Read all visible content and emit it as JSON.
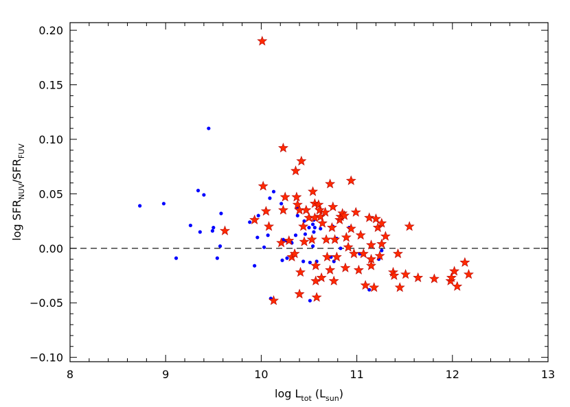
{
  "chart_data": {
    "type": "scatter",
    "xlabel_parts": [
      "log L",
      "tot",
      " (L",
      "sun",
      ")"
    ],
    "ylabel_parts": [
      "log SFR",
      "NUV",
      "/SFR",
      "FUV"
    ],
    "xlim": [
      8,
      13
    ],
    "xticks": [
      8,
      9,
      10,
      11,
      12,
      13
    ],
    "ylim": [
      -0.104,
      0.207
    ],
    "yticks": [
      {
        "value": -0.1,
        "label": "−0.10"
      },
      {
        "value": -0.05,
        "label": "−0.05"
      },
      {
        "value": 0,
        "label": "0.00"
      },
      {
        "value": 0.05,
        "label": "0.05"
      },
      {
        "value": 0.1,
        "label": "0.10"
      },
      {
        "value": 0.15,
        "label": "0.15"
      },
      {
        "value": 0.2,
        "label": "0.20"
      }
    ],
    "hline": 0,
    "series": [
      {
        "color": "#0000ff",
        "marker": "circle",
        "x": [
          8.73,
          8.98,
          9.11,
          9.26,
          9.34,
          9.36,
          9.4,
          9.45,
          9.49,
          9.5,
          9.54,
          9.57,
          9.58,
          9.88,
          9.93,
          9.93,
          9.96,
          9.97,
          10.03,
          10.07,
          10.09,
          10.1,
          10.13,
          10.21,
          10.22,
          10.23,
          10.26,
          10.27,
          10.31,
          10.32,
          10.36,
          10.38,
          10.38,
          10.44,
          10.45,
          10.46,
          10.5,
          10.51,
          10.51,
          10.54,
          10.54,
          10.55,
          10.55,
          10.56,
          10.58,
          10.62,
          10.73,
          10.76,
          10.75,
          10.79,
          10.83,
          10.92,
          11.03,
          11.13,
          11.23,
          11.26
        ],
        "values": [
          0.039,
          0.041,
          -0.009,
          0.021,
          0.053,
          0.015,
          0.049,
          0.11,
          0.016,
          0.019,
          -0.009,
          0.002,
          0.032,
          0.024,
          0.027,
          -0.016,
          0.01,
          0.03,
          0.001,
          0.012,
          0.046,
          -0.046,
          0.052,
          0.041,
          -0.011,
          0.008,
          0.007,
          -0.009,
          0.006,
          0.005,
          0.012,
          0.03,
          0.037,
          -0.012,
          0.025,
          0.013,
          0.019,
          -0.013,
          -0.048,
          0.022,
          0.002,
          0.015,
          0.026,
          0.019,
          -0.012,
          0.018,
          -0.008,
          -0.012,
          0.02,
          0.009,
          0.0,
          0.019,
          -0.005,
          -0.038,
          -0.01,
          -0.002
        ]
      },
      {
        "color": "#ff2a00",
        "marker": "star",
        "x": [
          10.01,
          10.23,
          10.36,
          10.42,
          10.02,
          10.25,
          9.62,
          9.93,
          10.05,
          10.08,
          10.13,
          10.23,
          10.21,
          10.29,
          10.32,
          10.35,
          10.37,
          10.38,
          10.4,
          10.4,
          10.41,
          10.44,
          10.45,
          10.47,
          10.5,
          10.53,
          10.54,
          10.56,
          10.56,
          10.57,
          10.57,
          10.58,
          10.6,
          10.61,
          10.62,
          10.63,
          10.64,
          10.67,
          10.68,
          10.69,
          10.72,
          10.72,
          10.74,
          10.75,
          10.76,
          10.77,
          10.79,
          10.82,
          10.83,
          10.85,
          10.87,
          10.89,
          10.88,
          10.91,
          10.94,
          10.94,
          10.97,
          10.99,
          11.02,
          11.04,
          11.07,
          11.09,
          11.13,
          11.15,
          11.15,
          11.15,
          11.18,
          11.2,
          11.22,
          11.24,
          11.26,
          11.26,
          11.3,
          11.38,
          11.39,
          11.43,
          11.45,
          11.51,
          11.55,
          11.64,
          11.81,
          11.98,
          11.99,
          12.02,
          12.05,
          12.13,
          12.17
        ],
        "values": [
          0.19,
          0.092,
          0.071,
          0.08,
          0.057,
          0.047,
          0.016,
          0.026,
          0.034,
          0.02,
          -0.048,
          0.035,
          0.005,
          0.007,
          -0.008,
          -0.005,
          0.047,
          0.04,
          0.035,
          -0.042,
          -0.022,
          0.02,
          0.006,
          0.035,
          0.028,
          0.008,
          0.052,
          0.041,
          0.028,
          -0.016,
          -0.03,
          -0.045,
          0.04,
          0.035,
          0.029,
          -0.027,
          0.023,
          0.033,
          0.008,
          -0.008,
          0.059,
          -0.02,
          0.019,
          0.038,
          -0.03,
          0.008,
          -0.008,
          0.026,
          0.029,
          0.032,
          0.03,
          0.01,
          -0.018,
          0.001,
          0.018,
          0.062,
          -0.005,
          0.033,
          -0.02,
          0.012,
          -0.005,
          -0.034,
          0.028,
          0.003,
          -0.01,
          -0.016,
          -0.036,
          0.027,
          0.019,
          -0.007,
          0.004,
          0.023,
          0.011,
          -0.022,
          -0.025,
          -0.005,
          -0.036,
          -0.024,
          0.02,
          -0.027,
          -0.028,
          -0.03,
          -0.027,
          -0.021,
          -0.035,
          -0.013,
          -0.024
        ]
      }
    ]
  }
}
